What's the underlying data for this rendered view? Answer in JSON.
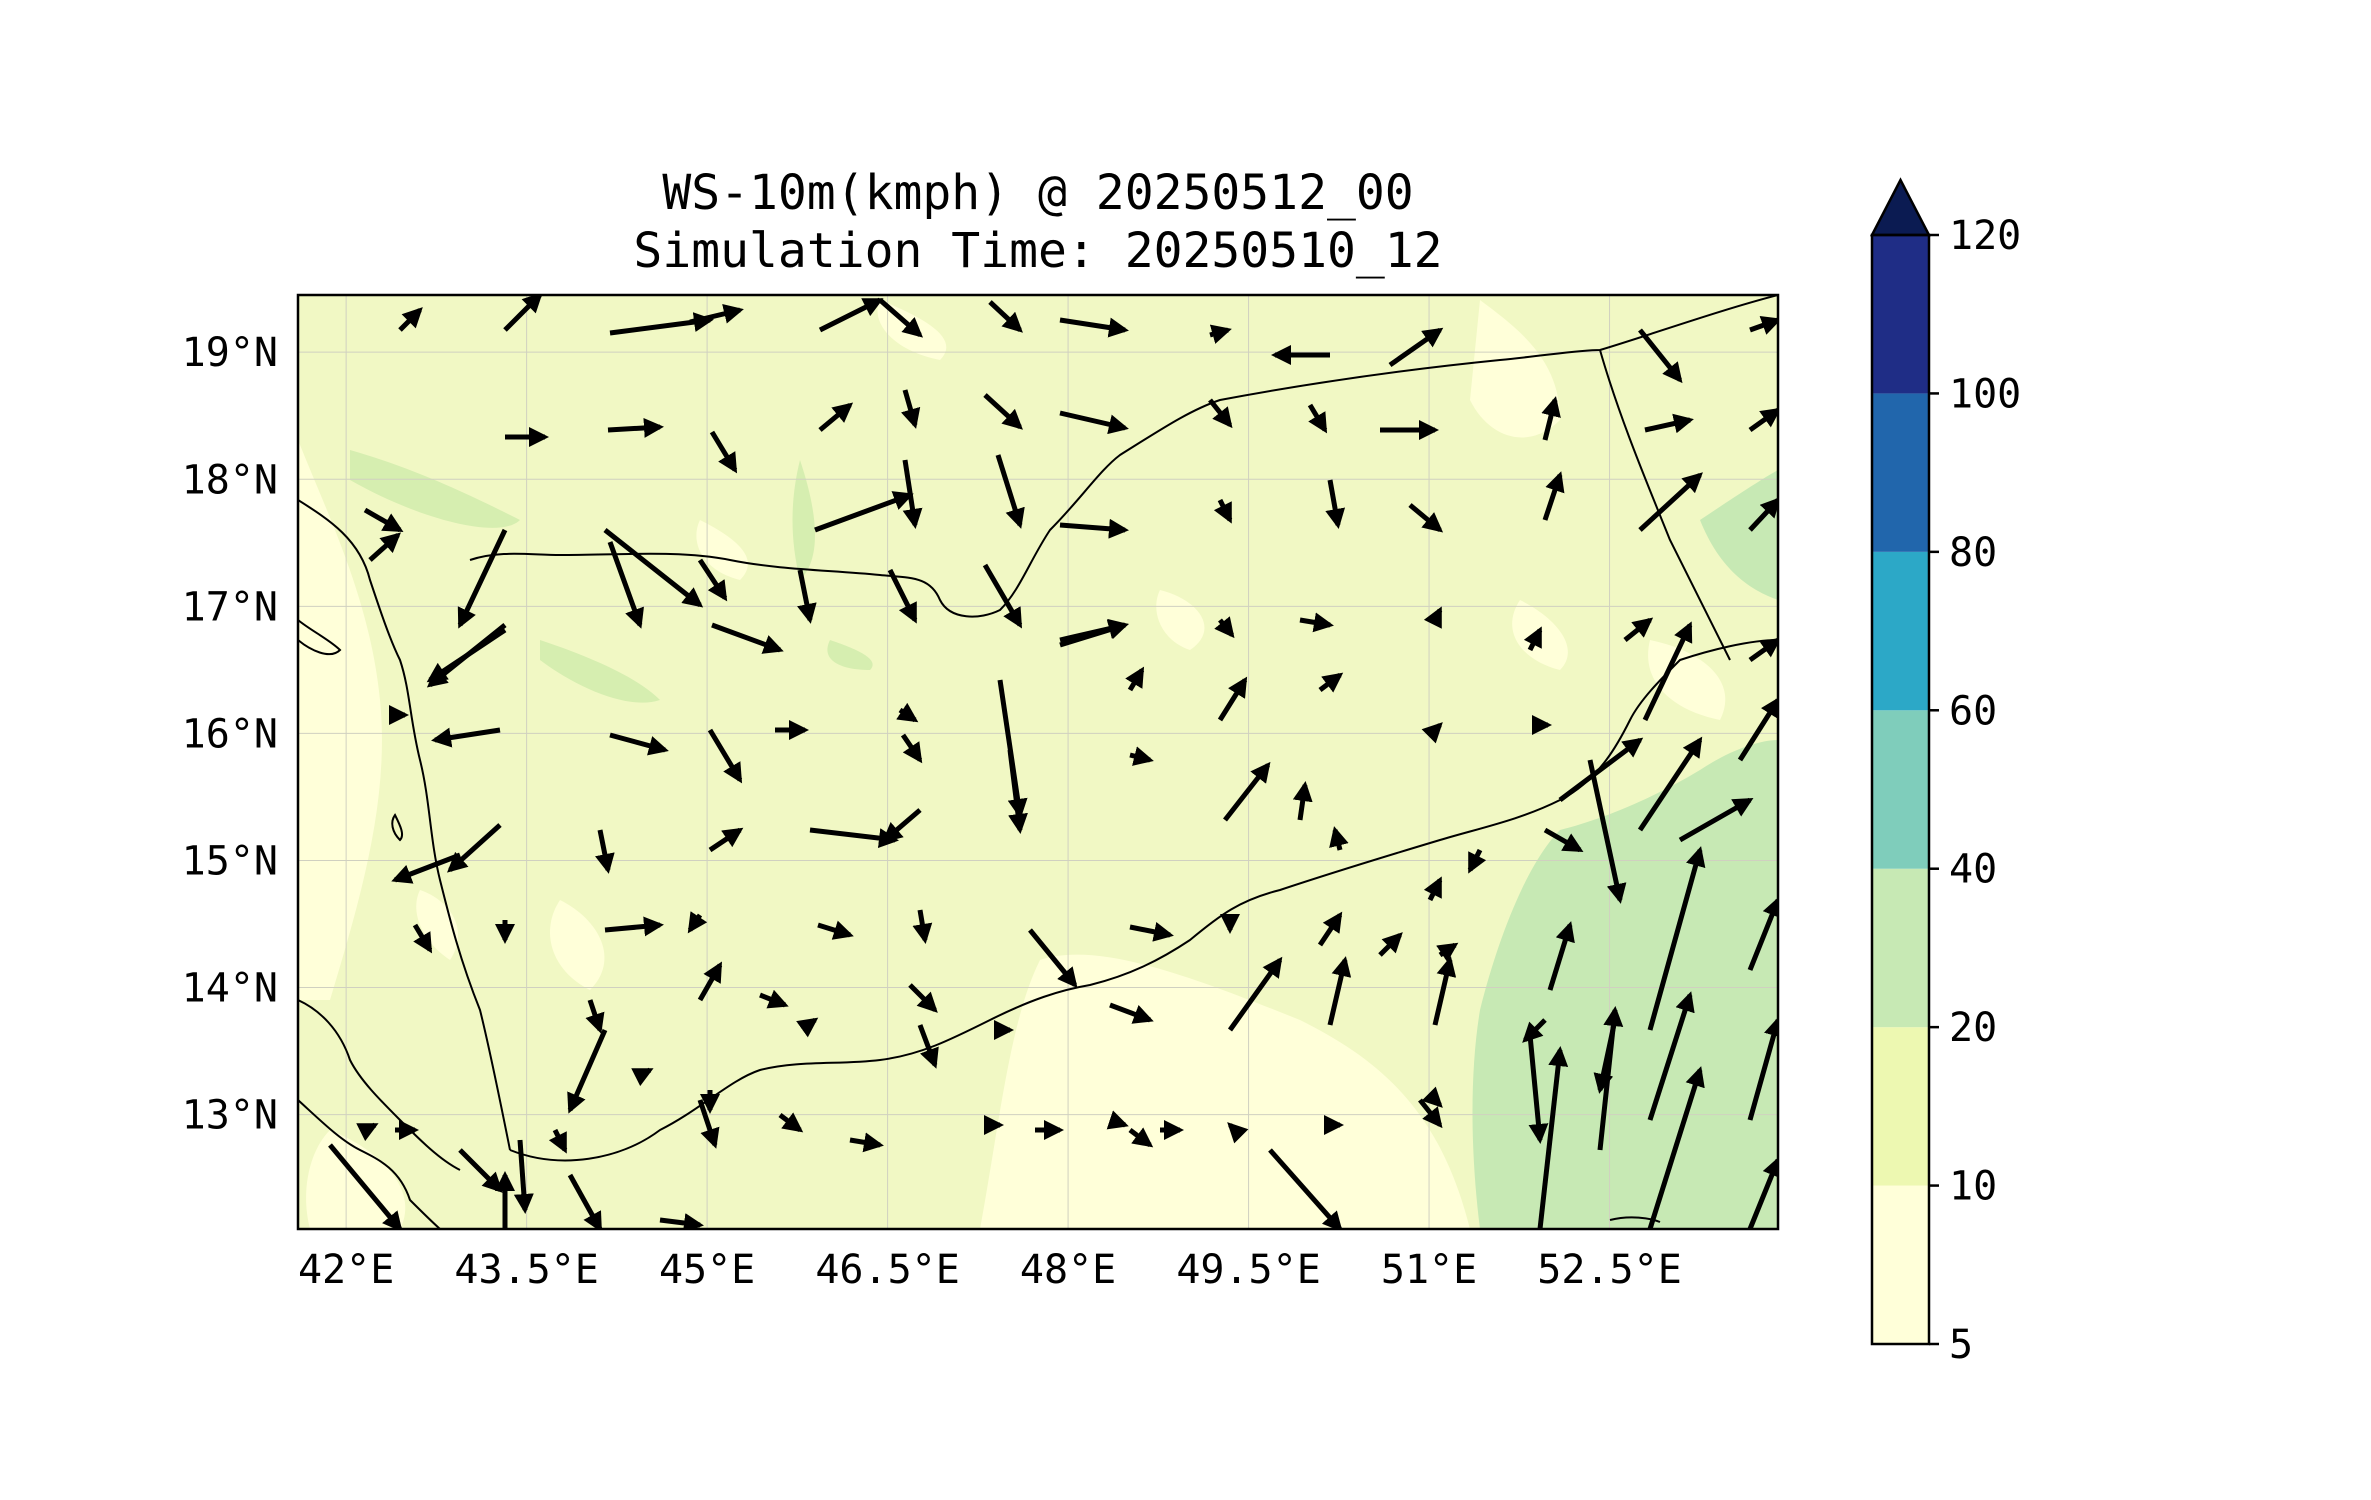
{
  "title": {
    "line1": "WS-10m(kmph) @ 20250512_00",
    "line2": "Simulation Time: 20250510_12"
  },
  "map": {
    "variable": "WS-10m(kmph)",
    "lon_range": [
      41.6,
      53.9
    ],
    "lat_range": [
      12.1,
      19.45
    ],
    "lon_ticks": [
      "42°E",
      "43.5°E",
      "45°E",
      "46.5°E",
      "48°E",
      "49.5°E",
      "51°E",
      "52.5°E"
    ],
    "lon_tick_values": [
      42,
      43.5,
      45,
      46.5,
      48,
      49.5,
      51,
      52.5
    ],
    "lat_ticks": [
      "19°N",
      "18°N",
      "17°N",
      "16°N",
      "15°N",
      "14°N",
      "13°N"
    ],
    "lat_tick_values": [
      19,
      18,
      17,
      16,
      15,
      14,
      13
    ],
    "gridlines": true,
    "arrow_color": "#000000",
    "coastline_color": "#000000"
  },
  "colorbar": {
    "levels": [
      "5",
      "10",
      "20",
      "40",
      "60",
      "80",
      "100",
      "120"
    ],
    "level_values": [
      5,
      10,
      20,
      40,
      60,
      80,
      100,
      120
    ],
    "colors": [
      "#ffffd9",
      "#edf8b1",
      "#c7e9b4",
      "#7fcdbb",
      "#2ca8c7",
      "#2166ac",
      "#1f2d86"
    ],
    "extend_color": "#0b1b52",
    "extend": "max",
    "placement": "right"
  }
}
